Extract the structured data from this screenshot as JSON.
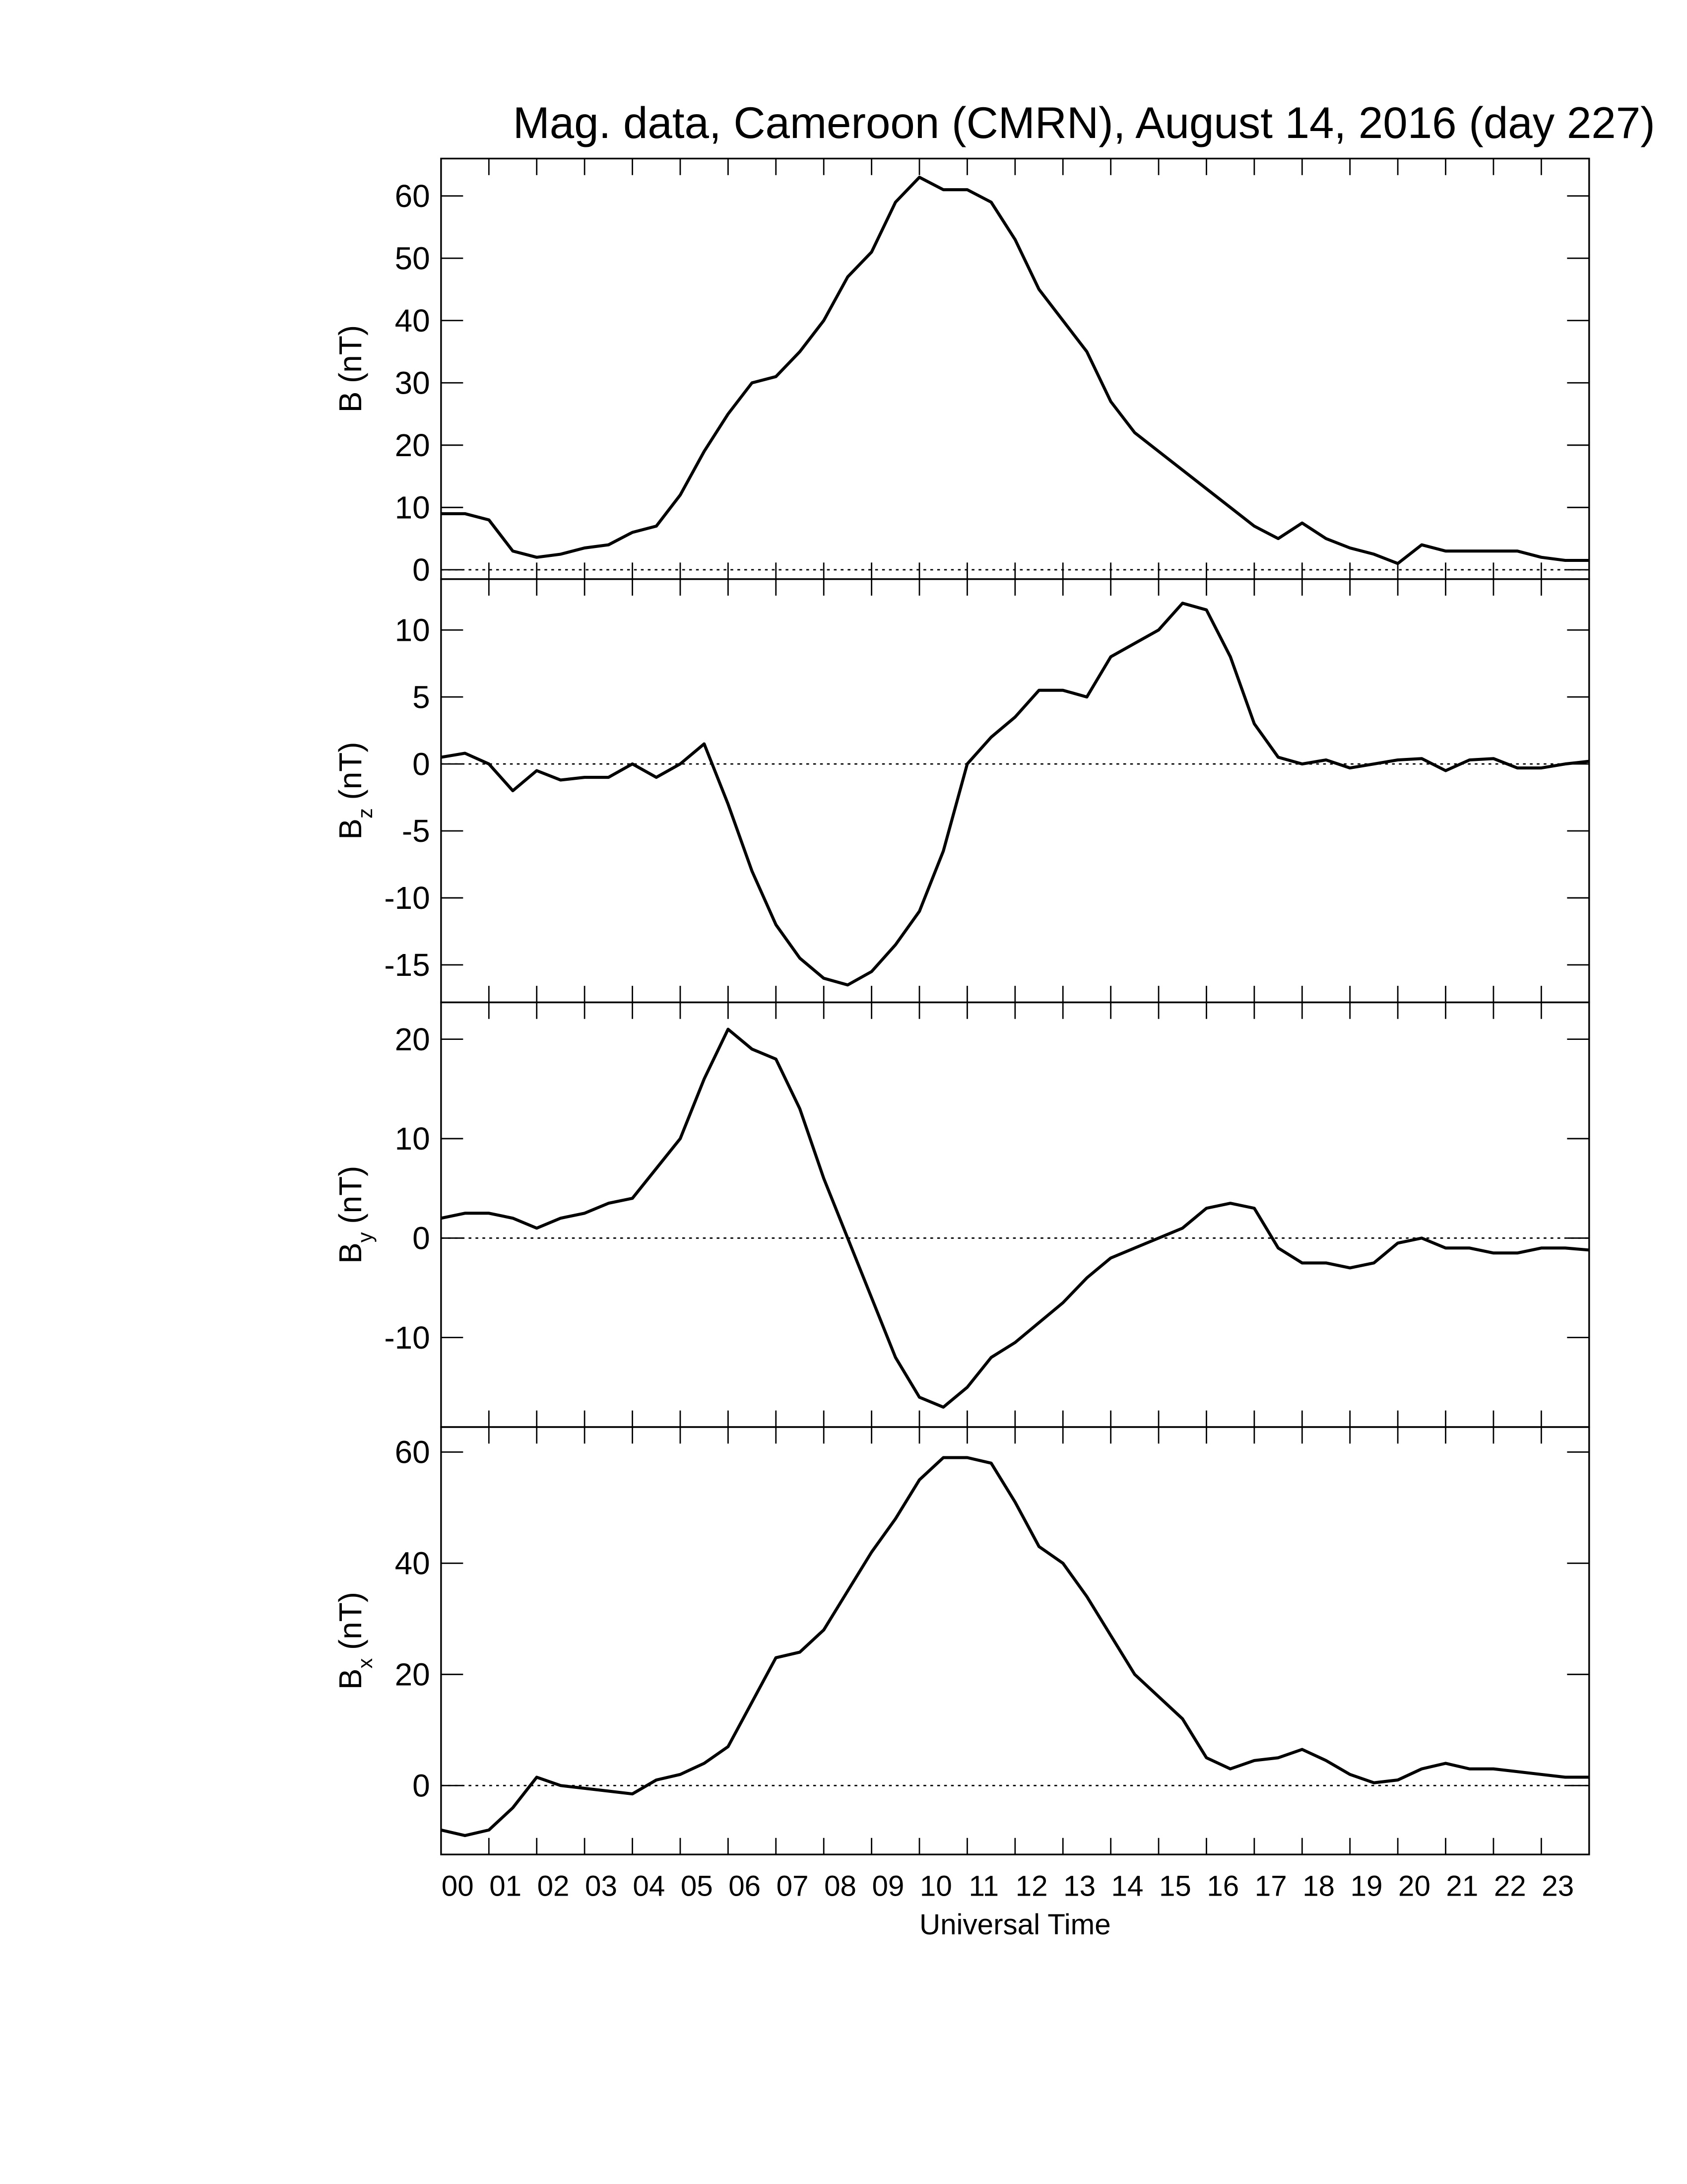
{
  "chart_data": [
    {
      "type": "line",
      "title": "Mag. data, Cameroon (CMRN), August 14, 2016 (day 227)",
      "ylabel": "B",
      "ylabel_unit": "(nT)",
      "x": [
        0,
        0.5,
        1,
        1.5,
        2,
        2.5,
        3,
        3.5,
        4,
        4.5,
        5,
        5.5,
        6,
        6.5,
        7,
        7.5,
        8,
        8.5,
        9,
        9.5,
        10,
        10.5,
        11,
        11.5,
        12,
        12.5,
        13,
        13.5,
        14,
        14.5,
        15,
        15.5,
        16,
        16.5,
        17,
        17.5,
        18,
        18.5,
        19,
        19.5,
        20,
        20.5,
        21,
        21.5,
        22,
        22.5,
        23,
        23.5,
        24
      ],
      "series": [
        {
          "name": "B",
          "color": "#000000",
          "values": [
            9,
            9,
            8,
            3,
            2,
            2.5,
            3.5,
            4,
            6,
            7,
            12,
            19,
            25,
            30,
            31,
            35,
            40,
            47,
            51,
            59,
            63,
            61,
            61,
            59,
            53,
            45,
            40,
            35,
            27,
            22,
            19,
            16,
            13,
            10,
            7,
            5,
            7.5,
            5,
            3.5,
            2.5,
            1,
            4,
            3,
            3,
            3,
            3,
            2,
            1.5,
            1.5
          ]
        }
      ],
      "xlim": [
        0,
        24
      ],
      "xticks": [
        {
          "value": 0,
          "label": "00"
        },
        {
          "value": 1,
          "label": "01"
        },
        {
          "value": 2,
          "label": "02"
        },
        {
          "value": 3,
          "label": "03"
        },
        {
          "value": 4,
          "label": "04"
        },
        {
          "value": 5,
          "label": "05"
        },
        {
          "value": 6,
          "label": "06"
        },
        {
          "value": 7,
          "label": "07"
        },
        {
          "value": 8,
          "label": "08"
        },
        {
          "value": 9,
          "label": "09"
        },
        {
          "value": 10,
          "label": "10"
        },
        {
          "value": 11,
          "label": "11"
        },
        {
          "value": 12,
          "label": "12"
        },
        {
          "value": 13,
          "label": "13"
        },
        {
          "value": 14,
          "label": "14"
        },
        {
          "value": 15,
          "label": "15"
        },
        {
          "value": 16,
          "label": "16"
        },
        {
          "value": 17,
          "label": "17"
        },
        {
          "value": 18,
          "label": "18"
        },
        {
          "value": 19,
          "label": "19"
        },
        {
          "value": 20,
          "label": "20"
        },
        {
          "value": 21,
          "label": "21"
        },
        {
          "value": 22,
          "label": "22"
        },
        {
          "value": 23,
          "label": "23"
        }
      ],
      "ylim": [
        -1.5,
        66
      ],
      "yticks": [
        0,
        10,
        20,
        30,
        40,
        50,
        60
      ],
      "zero_line": true
    },
    {
      "type": "line",
      "ylabel": "B",
      "ylabel_sub": "z",
      "ylabel_unit": "(nT)",
      "x": [
        0,
        0.5,
        1,
        1.5,
        2,
        2.5,
        3,
        3.5,
        4,
        4.5,
        5,
        5.5,
        6,
        6.5,
        7,
        7.5,
        8,
        8.5,
        9,
        9.5,
        10,
        10.5,
        11,
        11.5,
        12,
        12.5,
        13,
        13.5,
        14,
        14.5,
        15,
        15.5,
        16,
        16.5,
        17,
        17.5,
        18,
        18.5,
        19,
        19.5,
        20,
        20.5,
        21,
        21.5,
        22,
        22.5,
        23,
        23.5,
        24
      ],
      "series": [
        {
          "name": "Bz",
          "color": "#000000",
          "values": [
            0.5,
            0.8,
            0,
            -2,
            -0.5,
            -1.2,
            -1,
            -1,
            0,
            -1,
            0,
            1.5,
            -3,
            -8,
            -12,
            -14.5,
            -16,
            -16.5,
            -15.5,
            -13.5,
            -11,
            -6.5,
            0,
            2,
            3.5,
            5.5,
            5.5,
            5,
            8,
            9,
            10,
            12,
            11.5,
            8,
            3,
            0.5,
            0,
            0.3,
            -0.3,
            0,
            0.3,
            0.4,
            -0.5,
            0.3,
            0.4,
            -0.3,
            -0.3,
            0,
            0.2
          ]
        }
      ],
      "xlim": [
        0,
        24
      ],
      "xticks": [
        0,
        1,
        2,
        3,
        4,
        5,
        6,
        7,
        8,
        9,
        10,
        11,
        12,
        13,
        14,
        15,
        16,
        17,
        18,
        19,
        20,
        21,
        22,
        23
      ],
      "ylim": [
        -17.8,
        13.8
      ],
      "yticks": [
        -15,
        -10,
        -5,
        0,
        5,
        10
      ],
      "zero_line": true
    },
    {
      "type": "line",
      "ylabel": "B",
      "ylabel_sub": "y",
      "ylabel_unit": "(nT)",
      "x": [
        0,
        0.5,
        1,
        1.5,
        2,
        2.5,
        3,
        3.5,
        4,
        4.5,
        5,
        5.5,
        6,
        6.5,
        7,
        7.5,
        8,
        8.5,
        9,
        9.5,
        10,
        10.5,
        11,
        11.5,
        12,
        12.5,
        13,
        13.5,
        14,
        14.5,
        15,
        15.5,
        16,
        16.5,
        17,
        17.5,
        18,
        18.5,
        19,
        19.5,
        20,
        20.5,
        21,
        21.5,
        22,
        22.5,
        23,
        23.5,
        24
      ],
      "series": [
        {
          "name": "By",
          "color": "#000000",
          "values": [
            2,
            2.5,
            2.5,
            2,
            1,
            2,
            2.5,
            3.5,
            4,
            7,
            10,
            16,
            21,
            19,
            18,
            13,
            6,
            0,
            -6,
            -12,
            -16,
            -17,
            -15,
            -12,
            -10.5,
            -8.5,
            -6.5,
            -4,
            -2,
            -1,
            0,
            1,
            3,
            3.5,
            3,
            -1,
            -2.5,
            -2.5,
            -3,
            -2.5,
            -0.5,
            0,
            -1,
            -1,
            -1.5,
            -1.5,
            -1,
            -1,
            -1.2
          ]
        }
      ],
      "xlim": [
        0,
        24
      ],
      "xticks": [
        0,
        1,
        2,
        3,
        4,
        5,
        6,
        7,
        8,
        9,
        10,
        11,
        12,
        13,
        14,
        15,
        16,
        17,
        18,
        19,
        20,
        21,
        22,
        23
      ],
      "ylim": [
        -19,
        23.7
      ],
      "yticks": [
        -10,
        0,
        10,
        20
      ],
      "zero_line": true
    },
    {
      "type": "line",
      "ylabel": "B",
      "ylabel_sub": "x",
      "ylabel_unit": "(nT)",
      "xlabel": "Universal Time",
      "x": [
        0,
        0.5,
        1,
        1.5,
        2,
        2.5,
        3,
        3.5,
        4,
        4.5,
        5,
        5.5,
        6,
        6.5,
        7,
        7.5,
        8,
        8.5,
        9,
        9.5,
        10,
        10.5,
        11,
        11.5,
        12,
        12.5,
        13,
        13.5,
        14,
        14.5,
        15,
        15.5,
        16,
        16.5,
        17,
        17.5,
        18,
        18.5,
        19,
        19.5,
        20,
        20.5,
        21,
        21.5,
        22,
        22.5,
        23,
        23.5,
        24
      ],
      "series": [
        {
          "name": "Bx",
          "color": "#000000",
          "values": [
            -8,
            -9,
            -8,
            -4,
            1.5,
            0,
            -0.5,
            -1,
            -1.5,
            1,
            2,
            4,
            7,
            15,
            23,
            24,
            28,
            35,
            42,
            48,
            55,
            59,
            59,
            58,
            51,
            43,
            40,
            34,
            27,
            20,
            16,
            12,
            5,
            3,
            4.5,
            5,
            6.5,
            4.5,
            2,
            0.5,
            1,
            3,
            4,
            3,
            3,
            2.5,
            2,
            1.5,
            1.5
          ]
        }
      ],
      "xlim": [
        0,
        24
      ],
      "xticks": [
        {
          "value": 0,
          "label": "00"
        },
        {
          "value": 1,
          "label": "01"
        },
        {
          "value": 2,
          "label": "02"
        },
        {
          "value": 3,
          "label": "03"
        },
        {
          "value": 4,
          "label": "04"
        },
        {
          "value": 5,
          "label": "05"
        },
        {
          "value": 6,
          "label": "06"
        },
        {
          "value": 7,
          "label": "07"
        },
        {
          "value": 8,
          "label": "08"
        },
        {
          "value": 9,
          "label": "09"
        },
        {
          "value": 10,
          "label": "10"
        },
        {
          "value": 11,
          "label": "11"
        },
        {
          "value": 12,
          "label": "12"
        },
        {
          "value": 13,
          "label": "13"
        },
        {
          "value": 14,
          "label": "14"
        },
        {
          "value": 15,
          "label": "15"
        },
        {
          "value": 16,
          "label": "16"
        },
        {
          "value": 17,
          "label": "17"
        },
        {
          "value": 18,
          "label": "18"
        },
        {
          "value": 19,
          "label": "19"
        },
        {
          "value": 20,
          "label": "20"
        },
        {
          "value": 21,
          "label": "21"
        },
        {
          "value": 22,
          "label": "22"
        },
        {
          "value": 23,
          "label": "23"
        }
      ],
      "xticklabels": true,
      "ylim": [
        -12.4,
        64.5
      ],
      "yticks": [
        0,
        20,
        40,
        60
      ],
      "zero_line": true
    }
  ]
}
